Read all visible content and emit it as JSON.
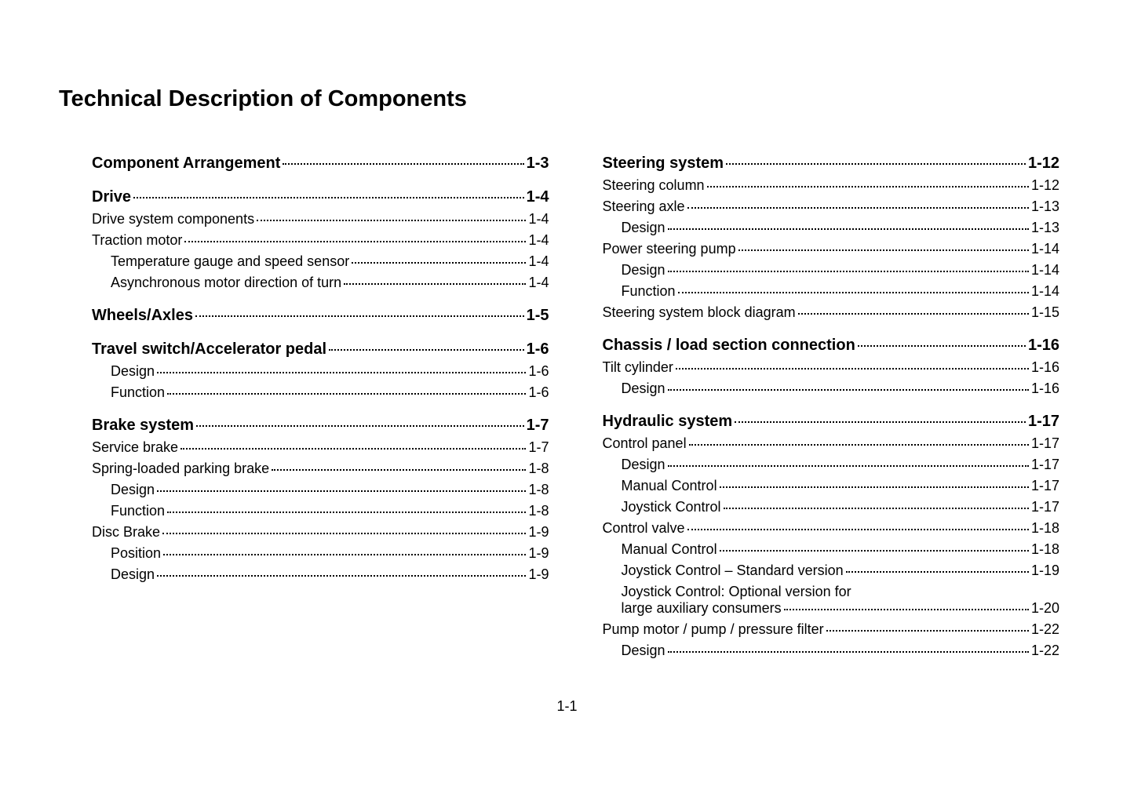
{
  "title": "Technical Description of Components",
  "page_number": "1-1",
  "left": [
    {
      "level": 1,
      "label": "Component Arrangement",
      "page": "1-3"
    },
    {
      "level": 1,
      "label": "Drive",
      "page": "1-4"
    },
    {
      "level": 2,
      "label": "Drive system components",
      "page": "1-4"
    },
    {
      "level": 2,
      "label": "Traction motor",
      "page": "1-4"
    },
    {
      "level": 3,
      "label": "Temperature gauge and speed sensor",
      "page": "1-4"
    },
    {
      "level": 3,
      "label": "Asynchronous motor direction of turn",
      "page": "1-4"
    },
    {
      "level": 1,
      "label": "Wheels/Axles",
      "page": "1-5"
    },
    {
      "level": 1,
      "label": "Travel switch/Accelerator pedal",
      "page": "1-6"
    },
    {
      "level": 3,
      "label": "Design",
      "page": "1-6"
    },
    {
      "level": 3,
      "label": "Function",
      "page": "1-6"
    },
    {
      "level": 1,
      "label": "Brake system",
      "page": "1-7"
    },
    {
      "level": 2,
      "label": "Service brake",
      "page": "1-7"
    },
    {
      "level": 2,
      "label": "Spring-loaded parking brake",
      "page": "1-8"
    },
    {
      "level": 3,
      "label": "Design",
      "page": "1-8"
    },
    {
      "level": 3,
      "label": "Function",
      "page": "1-8"
    },
    {
      "level": 2,
      "label": "Disc Brake",
      "page": "1-9"
    },
    {
      "level": 3,
      "label": "Position",
      "page": "1-9"
    },
    {
      "level": 3,
      "label": "Design",
      "page": "1-9"
    }
  ],
  "right": [
    {
      "level": 1,
      "label": "Steering system",
      "page": "1-12"
    },
    {
      "level": 2,
      "label": "Steering column",
      "page": "1-12"
    },
    {
      "level": 2,
      "label": "Steering axle",
      "page": "1-13"
    },
    {
      "level": 3,
      "label": "Design",
      "page": "1-13"
    },
    {
      "level": 2,
      "label": "Power steering pump",
      "page": "1-14"
    },
    {
      "level": 3,
      "label": "Design",
      "page": "1-14"
    },
    {
      "level": 3,
      "label": "Function",
      "page": "1-14"
    },
    {
      "level": 2,
      "label": "Steering system block diagram",
      "page": "1-15"
    },
    {
      "level": 1,
      "label": "Chassis / load section connection",
      "page": "1-16"
    },
    {
      "level": 2,
      "label": "Tilt cylinder",
      "page": "1-16"
    },
    {
      "level": 3,
      "label": "Design",
      "page": "1-16"
    },
    {
      "level": 1,
      "label": "Hydraulic system",
      "page": "1-17"
    },
    {
      "level": 2,
      "label": "Control panel",
      "page": "1-17"
    },
    {
      "level": 3,
      "label": "Design",
      "page": "1-17"
    },
    {
      "level": 3,
      "label": "Manual Control",
      "page": "1-17"
    },
    {
      "level": 3,
      "label": "Joystick Control",
      "page": "1-17"
    },
    {
      "level": 2,
      "label": "Control valve",
      "page": "1-18"
    },
    {
      "level": 3,
      "label": "Manual Control",
      "page": "1-18"
    },
    {
      "level": 3,
      "label": "Joystick Control – Standard version",
      "page": "1-19"
    },
    {
      "level": 3,
      "wrap": true,
      "label_top": "Joystick Control: Optional version for",
      "label_bottom": "large auxiliary consumers",
      "page": "1-20"
    },
    {
      "level": 2,
      "label": "Pump motor / pump / pressure filter",
      "page": "1-22"
    },
    {
      "level": 3,
      "label": "Design",
      "page": "1-22"
    }
  ],
  "colors": {
    "text": "#000000",
    "background": "#ffffff"
  },
  "typography": {
    "title_fontsize": 29,
    "lvl1_fontsize": 20,
    "body_fontsize": 18,
    "font_family": "Arial"
  }
}
